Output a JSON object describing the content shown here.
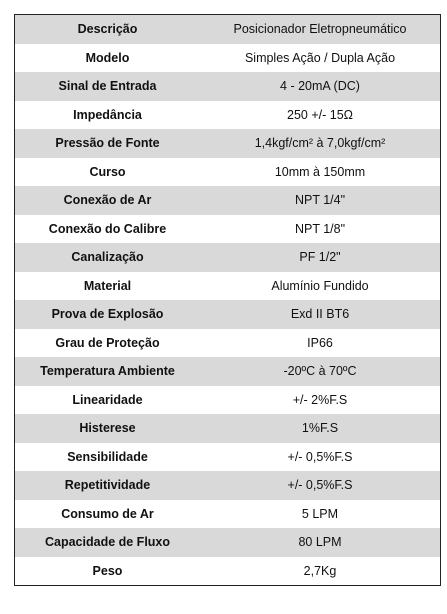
{
  "spec_rows": [
    {
      "label": "Descrição",
      "value": "Posicionador Eletropneumático"
    },
    {
      "label": "Modelo",
      "value": "Simples Ação / Dupla Ação"
    },
    {
      "label": "Sinal de Entrada",
      "value": "4 - 20mA (DC)"
    },
    {
      "label": "Impedância",
      "value": "250 +/- 15Ω"
    },
    {
      "label": "Pressão de Fonte",
      "value": "1,4kgf/cm² à 7,0kgf/cm²"
    },
    {
      "label": "Curso",
      "value": "10mm à 150mm"
    },
    {
      "label": "Conexão de Ar",
      "value": "NPT 1/4\""
    },
    {
      "label": "Conexão do Calibre",
      "value": "NPT 1/8\""
    },
    {
      "label": "Canalização",
      "value": "PF 1/2\""
    },
    {
      "label": "Material",
      "value": "Alumínio Fundido"
    },
    {
      "label": "Prova de Explosão",
      "value": "Exd II BT6"
    },
    {
      "label": "Grau de Proteção",
      "value": "IP66"
    },
    {
      "label": "Temperatura Ambiente",
      "value": "-20ºC à 70ºC"
    },
    {
      "label": "Linearidade",
      "value": "+/- 2%F.S"
    },
    {
      "label": "Histerese",
      "value": "1%F.S"
    },
    {
      "label": "Sensibilidade",
      "value": "+/- 0,5%F.S"
    },
    {
      "label": "Repetitividade",
      "value": "+/- 0,5%F.S"
    },
    {
      "label": "Consumo de Ar",
      "value": "5 LPM"
    },
    {
      "label": "Capacidade de Fluxo",
      "value": "80 LPM"
    },
    {
      "label": "Peso",
      "value": "2,7Kg"
    }
  ],
  "colors": {
    "shaded_row": "#d9d9d9",
    "plain_row": "#ffffff",
    "border": "#222222"
  }
}
